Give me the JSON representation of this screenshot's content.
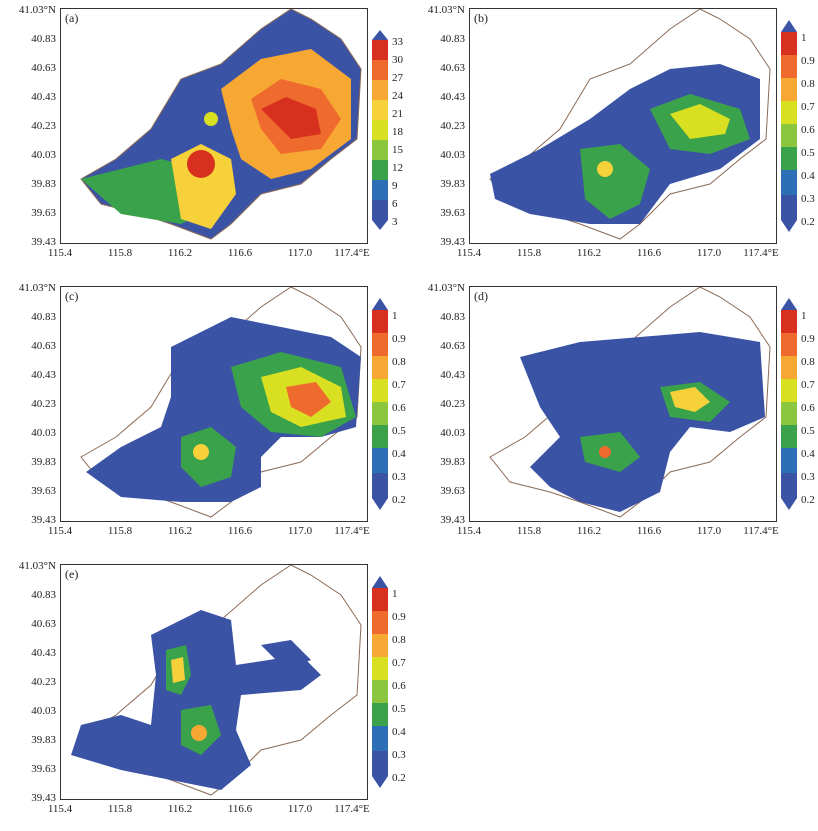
{
  "panels": [
    {
      "label": "(a)",
      "colorbar": [
        "33",
        "30",
        "27",
        "24",
        "21",
        "18",
        "15",
        "12",
        "9",
        "6",
        "3"
      ]
    },
    {
      "label": "(b)",
      "colorbar": [
        "1",
        "0.9",
        "0.8",
        "0.7",
        "0.6",
        "0.5",
        "0.4",
        "0.3",
        "0.2"
      ]
    },
    {
      "label": "(c)",
      "colorbar": [
        "1",
        "0.9",
        "0.8",
        "0.7",
        "0.6",
        "0.5",
        "0.4",
        "0.3",
        "0.2"
      ]
    },
    {
      "label": "(d)",
      "colorbar": [
        "1",
        "0.9",
        "0.8",
        "0.7",
        "0.6",
        "0.5",
        "0.4",
        "0.3",
        "0.2"
      ]
    },
    {
      "label": "(e)",
      "colorbar": [
        "1",
        "0.9",
        "0.8",
        "0.7",
        "0.6",
        "0.5",
        "0.4",
        "0.3",
        "0.2"
      ]
    }
  ],
  "y_ticks": [
    "41.03°N",
    "40.83",
    "40.63",
    "40.43",
    "40.23",
    "40.03",
    "39.83",
    "39.63",
    "39.43"
  ],
  "x_ticks": [
    "115.4",
    "115.8",
    "116.2",
    "116.6",
    "117.0",
    "117.4°E"
  ],
  "colors": {
    "ramp": [
      "#3b53a4",
      "#2d6fb6",
      "#3aa24a",
      "#8cc63f",
      "#d9e021",
      "#f6d13a",
      "#f7a833",
      "#ef6b2d",
      "#d7301f"
    ],
    "boundary": "#8b6a55"
  }
}
